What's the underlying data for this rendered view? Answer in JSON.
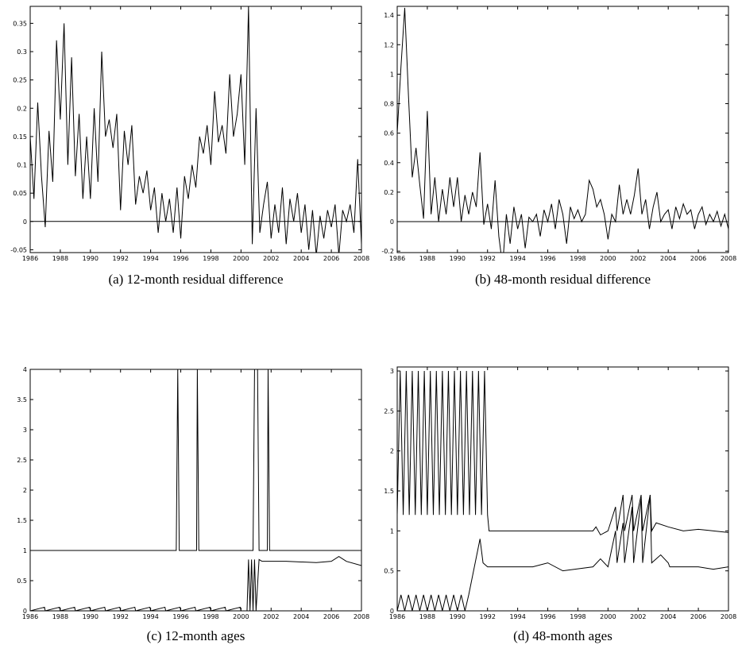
{
  "chart_data": [
    {
      "type": "line",
      "caption": "(a) 12-month residual difference",
      "xlim": [
        1986,
        2008
      ],
      "ylim": [
        -0.055,
        0.38
      ],
      "xticks": [
        1986,
        1988,
        1990,
        1992,
        1994,
        1996,
        1998,
        2000,
        2002,
        2004,
        2006,
        2008
      ],
      "yticks": [
        -0.05,
        0,
        0.05,
        0.1,
        0.15,
        0.2,
        0.25,
        0.3,
        0.35
      ],
      "hline": 0,
      "series": [
        {
          "color": "#000000",
          "x": [
            1986,
            1986.25,
            1986.5,
            1986.75,
            1987,
            1987.25,
            1987.5,
            1987.75,
            1988,
            1988.25,
            1988.5,
            1988.75,
            1989,
            1989.25,
            1989.5,
            1989.75,
            1990,
            1990.25,
            1990.5,
            1990.75,
            1991,
            1991.25,
            1991.5,
            1991.75,
            1992,
            1992.25,
            1992.5,
            1992.75,
            1993,
            1993.25,
            1993.5,
            1993.75,
            1994,
            1994.25,
            1994.5,
            1994.75,
            1995,
            1995.25,
            1995.5,
            1995.75,
            1996,
            1996.25,
            1996.5,
            1996.75,
            1997,
            1997.25,
            1997.5,
            1997.75,
            1998,
            1998.25,
            1998.5,
            1998.75,
            1999,
            1999.25,
            1999.5,
            1999.75,
            2000,
            2000.25,
            2000.5,
            2000.75,
            2001,
            2001.25,
            2001.5,
            2001.75,
            2002,
            2002.25,
            2002.5,
            2002.75,
            2003,
            2003.25,
            2003.5,
            2003.75,
            2004,
            2004.25,
            2004.5,
            2004.75,
            2005,
            2005.25,
            2005.5,
            2005.75,
            2006,
            2006.25,
            2006.5,
            2006.75,
            2007,
            2007.25,
            2007.5,
            2007.75,
            2008
          ],
          "values": [
            0.15,
            0.04,
            0.21,
            0.08,
            -0.01,
            0.16,
            0.07,
            0.32,
            0.18,
            0.35,
            0.1,
            0.29,
            0.08,
            0.19,
            0.04,
            0.15,
            0.04,
            0.2,
            0.07,
            0.3,
            0.15,
            0.18,
            0.13,
            0.19,
            0.02,
            0.16,
            0.1,
            0.17,
            0.03,
            0.08,
            0.05,
            0.09,
            0.02,
            0.06,
            -0.02,
            0.05,
            0.0,
            0.04,
            -0.02,
            0.06,
            -0.03,
            0.08,
            0.04,
            0.1,
            0.06,
            0.15,
            0.12,
            0.17,
            0.1,
            0.23,
            0.14,
            0.17,
            0.12,
            0.26,
            0.15,
            0.19,
            0.26,
            0.1,
            0.38,
            -0.04,
            0.2,
            -0.02,
            0.03,
            0.07,
            -0.03,
            0.03,
            -0.02,
            0.06,
            -0.04,
            0.04,
            0.0,
            0.05,
            -0.02,
            0.03,
            -0.05,
            0.02,
            -0.06,
            0.01,
            -0.03,
            0.02,
            -0.01,
            0.03,
            -0.06,
            0.02,
            0.0,
            0.03,
            -0.02,
            0.11,
            -0.04
          ]
        }
      ]
    },
    {
      "type": "line",
      "caption": "(b) 48-month residual difference",
      "xlim": [
        1986,
        2008
      ],
      "ylim": [
        -0.21,
        1.46
      ],
      "xticks": [
        1986,
        1988,
        1990,
        1992,
        1994,
        1996,
        1998,
        2000,
        2002,
        2004,
        2006,
        2008
      ],
      "yticks": [
        -0.2,
        0,
        0.2,
        0.4,
        0.6,
        0.8,
        1,
        1.2,
        1.4
      ],
      "hline": 0,
      "series": [
        {
          "color": "#000000",
          "x": [
            1986,
            1986.25,
            1986.5,
            1986.75,
            1987,
            1987.25,
            1987.5,
            1987.75,
            1988,
            1988.25,
            1988.5,
            1988.75,
            1989,
            1989.25,
            1989.5,
            1989.75,
            1990,
            1990.25,
            1990.5,
            1990.75,
            1991,
            1991.25,
            1991.5,
            1991.75,
            1992,
            1992.25,
            1992.5,
            1992.75,
            1993,
            1993.25,
            1993.5,
            1993.75,
            1994,
            1994.25,
            1994.5,
            1994.75,
            1995,
            1995.25,
            1995.5,
            1995.75,
            1996,
            1996.25,
            1996.5,
            1996.75,
            1997,
            1997.25,
            1997.5,
            1997.75,
            1998,
            1998.25,
            1998.5,
            1998.75,
            1999,
            1999.25,
            1999.5,
            1999.75,
            2000,
            2000.25,
            2000.5,
            2000.75,
            2001,
            2001.25,
            2001.5,
            2001.75,
            2002,
            2002.25,
            2002.5,
            2002.75,
            2003,
            2003.25,
            2003.5,
            2003.75,
            2004,
            2004.25,
            2004.5,
            2004.75,
            2005,
            2005.25,
            2005.5,
            2005.75,
            2006,
            2006.25,
            2006.5,
            2006.75,
            2007,
            2007.25,
            2007.5,
            2007.75,
            2008
          ],
          "values": [
            0.6,
            1.05,
            1.45,
            0.85,
            0.3,
            0.5,
            0.25,
            0.02,
            0.75,
            0.05,
            0.3,
            0.0,
            0.22,
            0.05,
            0.3,
            0.1,
            0.3,
            0.0,
            0.18,
            0.05,
            0.2,
            0.1,
            0.47,
            -0.02,
            0.12,
            -0.05,
            0.28,
            -0.1,
            -0.3,
            0.05,
            -0.15,
            0.1,
            -0.05,
            0.05,
            -0.18,
            0.03,
            0.0,
            0.05,
            -0.1,
            0.08,
            0.0,
            0.12,
            -0.05,
            0.15,
            0.05,
            -0.15,
            0.1,
            0.02,
            0.08,
            0.0,
            0.05,
            0.28,
            0.22,
            0.1,
            0.15,
            0.05,
            -0.12,
            0.05,
            0.0,
            0.25,
            0.05,
            0.15,
            0.05,
            0.18,
            0.36,
            0.05,
            0.15,
            -0.05,
            0.1,
            0.2,
            0.0,
            0.05,
            0.08,
            -0.05,
            0.1,
            0.02,
            0.12,
            0.05,
            0.08,
            -0.05,
            0.05,
            0.1,
            -0.02,
            0.05,
            0.0,
            0.07,
            -0.03,
            0.05,
            -0.05
          ]
        }
      ]
    },
    {
      "type": "line",
      "caption": "(c) 12-month ages",
      "xlim": [
        1986,
        2008
      ],
      "ylim": [
        0,
        4
      ],
      "xticks": [
        1986,
        1988,
        1990,
        1992,
        1994,
        1996,
        1998,
        2000,
        2002,
        2004,
        2006,
        2008
      ],
      "yticks": [
        0,
        0.5,
        1,
        1.5,
        2,
        2.5,
        3,
        3.5,
        4
      ],
      "series": [
        {
          "color": "#000000",
          "x": [
            1986,
            1995.7,
            1995.8,
            1995.9,
            1997.05,
            1997.1,
            1997.2,
            2000.8,
            2000.9,
            2001.1,
            2001.2,
            2001.75,
            2001.8,
            2001.9,
            2008
          ],
          "values": [
            1,
            1,
            4,
            1,
            1,
            4,
            1,
            1,
            4,
            4,
            1,
            1,
            4,
            1,
            1
          ]
        },
        {
          "color": "#000000",
          "x": [
            1986,
            1986.95,
            1987,
            1987.95,
            1988,
            1988.95,
            1989,
            1989.95,
            1990,
            1990.95,
            1991,
            1991.95,
            1992,
            1992.95,
            1993,
            1993.95,
            1994,
            1994.95,
            1995,
            1995.95,
            1996,
            1996.95,
            1997,
            1997.95,
            1998,
            1998.95,
            1999,
            1999.95,
            2000,
            2000.4,
            2000.5,
            2000.6,
            2000.7,
            2000.8,
            2000.9,
            2001,
            2001.2,
            2001.4,
            2002,
            2003,
            2004,
            2005,
            2006,
            2006.5,
            2007,
            2008
          ],
          "values": [
            0,
            0.06,
            0,
            0.06,
            0,
            0.06,
            0,
            0.06,
            0,
            0.06,
            0,
            0.06,
            0,
            0.06,
            0,
            0.06,
            0,
            0.06,
            0,
            0.06,
            0,
            0.06,
            0,
            0.06,
            0,
            0.06,
            0,
            0.06,
            0,
            0,
            0.85,
            0,
            0.85,
            0,
            0.85,
            0,
            0.85,
            0.82,
            0.82,
            0.82,
            0.81,
            0.8,
            0.82,
            0.9,
            0.82,
            0.75
          ]
        }
      ]
    },
    {
      "type": "line",
      "caption": "(d) 48-month ages",
      "xlim": [
        1986,
        2008
      ],
      "ylim": [
        0,
        3.05
      ],
      "xticks": [
        1986,
        1988,
        1990,
        1992,
        1994,
        1996,
        1998,
        2000,
        2002,
        2004,
        2006,
        2008
      ],
      "yticks": [
        0,
        0.5,
        1,
        1.5,
        2,
        2.5,
        3
      ],
      "series": [
        {
          "color": "#000000",
          "x": [
            1986,
            1986.2,
            1986.4,
            1986.6,
            1986.8,
            1987,
            1987.2,
            1987.4,
            1987.6,
            1987.8,
            1988,
            1988.2,
            1988.4,
            1988.6,
            1988.8,
            1989,
            1989.2,
            1989.4,
            1989.6,
            1989.8,
            1990,
            1990.2,
            1990.4,
            1990.6,
            1990.8,
            1991,
            1991.2,
            1991.4,
            1991.6,
            1991.8,
            1992,
            1992.1,
            1999,
            1999.2,
            1999.5,
            2000,
            2000.5,
            2000.6,
            2001,
            2001.1,
            2001.6,
            2001.7,
            2002.2,
            2002.3,
            2002.8,
            2002.9,
            2003.2,
            2004,
            2005,
            2006,
            2007,
            2008
          ],
          "values": [
            1.2,
            3.0,
            1.2,
            3.0,
            1.2,
            3.0,
            1.2,
            3.0,
            1.2,
            3.0,
            1.2,
            3.0,
            1.2,
            3.0,
            1.2,
            3.0,
            1.2,
            3.0,
            1.2,
            3.0,
            1.2,
            3.0,
            1.2,
            3.0,
            1.2,
            3.0,
            1.2,
            3.0,
            1.2,
            3.0,
            1.2,
            1.0,
            1.0,
            1.05,
            0.95,
            1.0,
            1.3,
            1.0,
            1.45,
            1.0,
            1.45,
            1.0,
            1.45,
            1.0,
            1.45,
            1.0,
            1.1,
            1.05,
            1.0,
            1.02,
            1.0,
            0.98
          ]
        },
        {
          "color": "#000000",
          "x": [
            1986,
            1986.25,
            1986.5,
            1986.75,
            1987,
            1987.25,
            1987.5,
            1987.75,
            1988,
            1988.25,
            1988.5,
            1988.75,
            1989,
            1989.25,
            1989.5,
            1989.75,
            1990,
            1990.25,
            1990.5,
            1990.75,
            1991.5,
            1991.7,
            1992,
            1995,
            1996,
            1997,
            1999,
            1999.5,
            2000,
            2000.5,
            2000.6,
            2001,
            2001.1,
            2001.6,
            2001.7,
            2002.2,
            2002.3,
            2002.8,
            2002.9,
            2003.5,
            2004,
            2004.1,
            2006,
            2007,
            2008
          ],
          "values": [
            0,
            0.2,
            0,
            0.2,
            0,
            0.2,
            0,
            0.2,
            0,
            0.2,
            0,
            0.2,
            0,
            0.2,
            0,
            0.2,
            0,
            0.2,
            0,
            0.2,
            0.9,
            0.6,
            0.55,
            0.55,
            0.6,
            0.5,
            0.55,
            0.65,
            0.55,
            1.0,
            0.6,
            1.1,
            0.6,
            1.3,
            0.6,
            1.4,
            0.6,
            1.45,
            0.6,
            0.7,
            0.6,
            0.55,
            0.55,
            0.52,
            0.55
          ]
        }
      ]
    }
  ]
}
